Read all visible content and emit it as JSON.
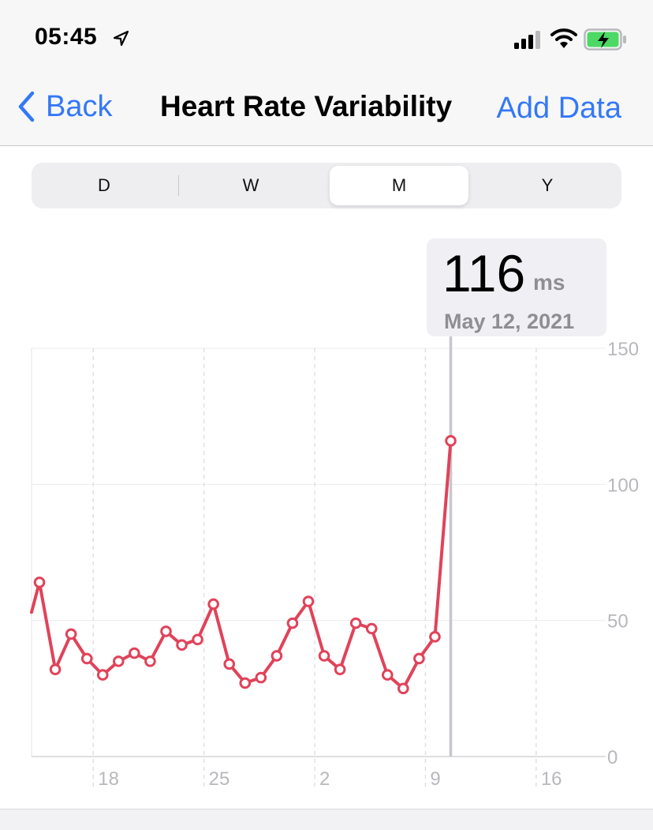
{
  "status_bar": {
    "time": "05:45",
    "icons": [
      "location-arrow-icon",
      "cellular-signal-icon",
      "wifi-icon",
      "battery-charging-icon"
    ]
  },
  "nav": {
    "back_label": "Back",
    "title": "Heart Rate Variability",
    "action_label": "Add Data",
    "accent_color": "#3478f6"
  },
  "segments": {
    "items": [
      "D",
      "W",
      "M",
      "Y"
    ],
    "selected": "M"
  },
  "selection": {
    "value": "116",
    "unit": "ms",
    "date": "May 12, 2021"
  },
  "chart_data": {
    "type": "line",
    "series_color": "#e0435a",
    "y_ticks": [
      150,
      100,
      50,
      0
    ],
    "ylim": [
      0,
      150
    ],
    "x_ticks": [
      {
        "label": "18",
        "day": 18
      },
      {
        "label": "25",
        "day": 25
      },
      {
        "label": "2",
        "day": 32
      },
      {
        "label": "9",
        "day": 39
      },
      {
        "label": "16",
        "day": 46
      }
    ],
    "xlim": [
      14.1,
      48.9
    ],
    "grid": true,
    "points": [
      {
        "day": 14.1,
        "value": 53
      },
      {
        "day": 14.6,
        "value": 64
      },
      {
        "day": 15.6,
        "value": 32
      },
      {
        "day": 16.6,
        "value": 45
      },
      {
        "day": 17.6,
        "value": 36
      },
      {
        "day": 18.6,
        "value": 30
      },
      {
        "day": 19.6,
        "value": 35
      },
      {
        "day": 20.6,
        "value": 38
      },
      {
        "day": 21.6,
        "value": 35
      },
      {
        "day": 22.6,
        "value": 46
      },
      {
        "day": 23.6,
        "value": 41
      },
      {
        "day": 24.6,
        "value": 43
      },
      {
        "day": 25.6,
        "value": 56
      },
      {
        "day": 26.6,
        "value": 34
      },
      {
        "day": 27.6,
        "value": 27
      },
      {
        "day": 28.6,
        "value": 29
      },
      {
        "day": 29.6,
        "value": 37
      },
      {
        "day": 30.6,
        "value": 49
      },
      {
        "day": 31.6,
        "value": 57
      },
      {
        "day": 32.6,
        "value": 37
      },
      {
        "day": 33.6,
        "value": 32
      },
      {
        "day": 34.6,
        "value": 49
      },
      {
        "day": 35.6,
        "value": 47
      },
      {
        "day": 36.6,
        "value": 30
      },
      {
        "day": 37.6,
        "value": 25
      },
      {
        "day": 38.6,
        "value": 36
      },
      {
        "day": 39.6,
        "value": 44
      },
      {
        "day": 40.6,
        "value": 116
      }
    ],
    "selected_day": 40.6
  }
}
